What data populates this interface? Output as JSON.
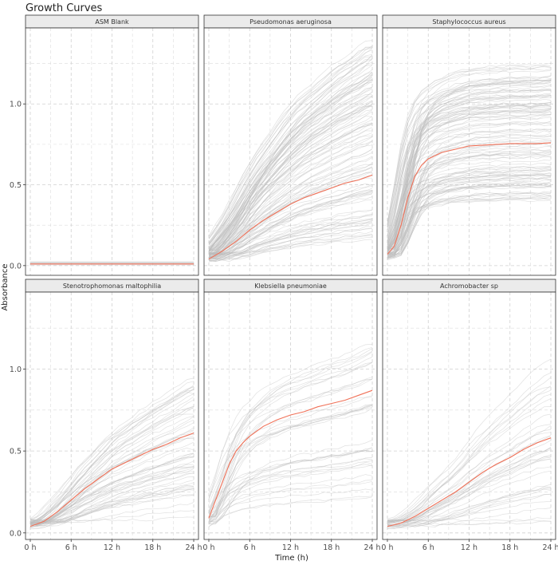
{
  "chart_data": {
    "type": "line",
    "title": "Growth Curves",
    "xlabel": "Time (h)",
    "ylabel": "Absorbance",
    "x_ticks": [
      0,
      6,
      12,
      18,
      24
    ],
    "x_tick_labels": [
      "0 h",
      "6 h",
      "12 h",
      "18 h",
      "24 h"
    ],
    "y_ticks": [
      0,
      0.5,
      1
    ],
    "y_tick_labels": [
      "0.0",
      "0.5",
      "1.0"
    ],
    "xlim": [
      -0.7,
      24.7
    ],
    "rows": [
      {
        "ylim": [
          -0.06,
          1.47
        ]
      },
      {
        "ylim": [
          -0.04,
          1.47
        ]
      }
    ],
    "grid": true,
    "colors": {
      "mean_line": "#f07158",
      "replicates": "#bdbdbd",
      "strip_fill": "#ebebeb"
    },
    "panels": [
      {
        "name": "ASM Blank",
        "x": [
          0,
          2,
          4,
          6,
          8,
          10,
          12,
          14,
          16,
          18,
          20,
          22,
          24
        ],
        "mean": [
          0.01,
          0.01,
          0.01,
          0.01,
          0.01,
          0.01,
          0.01,
          0.01,
          0.01,
          0.01,
          0.01,
          0.01,
          0.01
        ],
        "replicate_band": [
          0.0,
          0.025
        ],
        "replicate_count": 8
      },
      {
        "name": "Pseudomonas aeruginosa",
        "x": [
          0,
          2,
          4,
          6,
          8,
          10,
          12,
          14,
          16,
          18,
          20,
          22,
          24
        ],
        "mean": [
          0.04,
          0.09,
          0.15,
          0.22,
          0.28,
          0.33,
          0.38,
          0.42,
          0.45,
          0.48,
          0.51,
          0.53,
          0.56
        ],
        "replicate_range": [
          0.12,
          1.4
        ],
        "replicate_count": 120
      },
      {
        "name": "Staphylococcus aureus",
        "x": [
          0,
          1,
          2,
          3,
          4,
          5,
          6,
          8,
          10,
          12,
          14,
          16,
          18,
          20,
          22,
          24
        ],
        "mean": [
          0.07,
          0.12,
          0.25,
          0.42,
          0.55,
          0.62,
          0.66,
          0.7,
          0.72,
          0.74,
          0.745,
          0.75,
          0.755,
          0.755,
          0.755,
          0.76
        ],
        "replicate_range": [
          0.4,
          1.25
        ],
        "replicate_count": 120
      },
      {
        "name": "Stenotrophomonas maltophilia",
        "x": [
          0,
          2,
          4,
          6,
          8,
          10,
          12,
          14,
          16,
          18,
          20,
          22,
          24
        ],
        "mean": [
          0.04,
          0.07,
          0.13,
          0.2,
          0.27,
          0.33,
          0.39,
          0.43,
          0.47,
          0.51,
          0.54,
          0.58,
          0.61
        ],
        "replicate_range": [
          0.08,
          0.96
        ],
        "replicate_count": 60
      },
      {
        "name": "Klebsiella pneumoniae",
        "x": [
          0,
          1,
          2,
          3,
          4,
          5,
          6,
          8,
          10,
          12,
          14,
          16,
          18,
          20,
          22,
          24
        ],
        "mean": [
          0.09,
          0.2,
          0.31,
          0.42,
          0.5,
          0.55,
          0.59,
          0.65,
          0.69,
          0.72,
          0.74,
          0.77,
          0.79,
          0.81,
          0.84,
          0.87
        ],
        "replicate_range": [
          0.2,
          1.16
        ],
        "replicate_count": 40
      },
      {
        "name": "Achromobacter sp",
        "x": [
          0,
          2,
          4,
          6,
          8,
          10,
          12,
          14,
          16,
          18,
          20,
          22,
          24
        ],
        "mean": [
          0.04,
          0.06,
          0.1,
          0.15,
          0.2,
          0.25,
          0.31,
          0.37,
          0.42,
          0.46,
          0.51,
          0.55,
          0.58
        ],
        "replicate_range": [
          0.05,
          1.07
        ],
        "replicate_count": 40
      }
    ]
  }
}
